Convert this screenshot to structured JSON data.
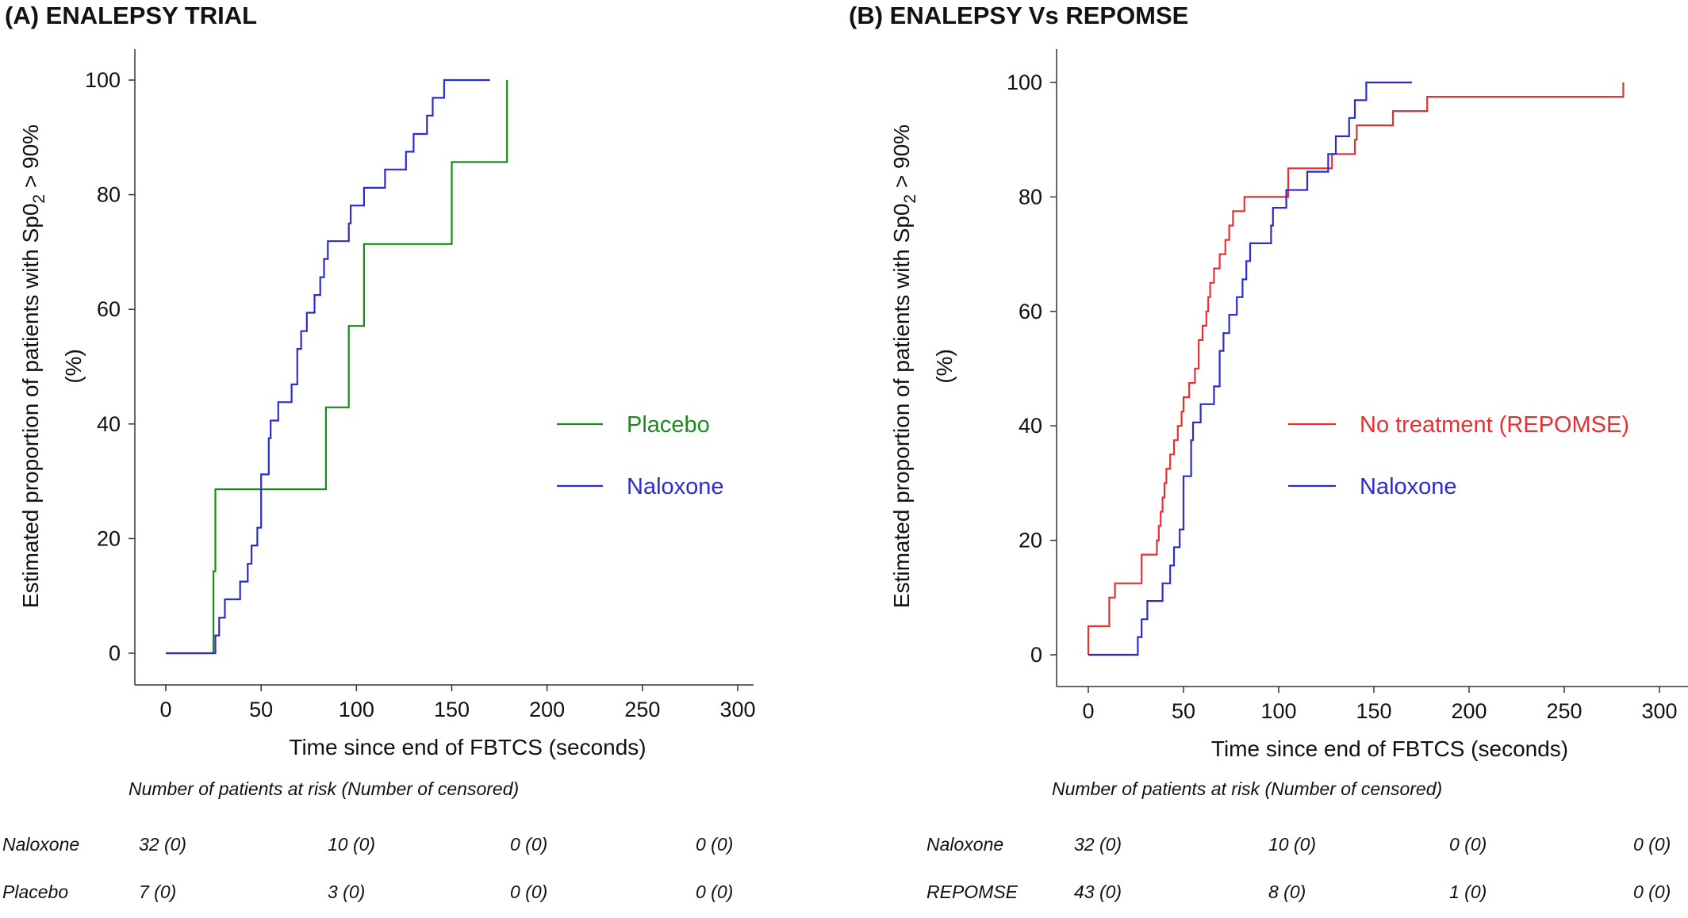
{
  "chart_data": [
    {
      "type": "line",
      "panel_title": "(A)  ENALEPSY TRIAL",
      "xlabel": "Time since end of FBTCS (seconds)",
      "ylabel_main": "Estimated proportion of patients with Sp0",
      "ylabel_sub": "2",
      "ylabel_tail": " > 90%",
      "ylabel_unit": "(%)",
      "xlim": [
        0,
        300
      ],
      "ylim": [
        0,
        100
      ],
      "xticks": [
        "0",
        "50",
        "100",
        "150",
        "200",
        "250",
        "300"
      ],
      "yticks": [
        "0",
        "20",
        "40",
        "60",
        "80",
        "100"
      ],
      "grid": false,
      "legend_position": "right",
      "series": [
        {
          "name": "Placebo",
          "color": "#1a8a1a",
          "x": [
            0,
            25,
            26,
            84,
            96,
            104,
            150,
            179
          ],
          "y": [
            0,
            14.3,
            28.6,
            42.9,
            57.1,
            71.4,
            85.7,
            100
          ]
        },
        {
          "name": "Naloxone",
          "color": "#2b2bd0",
          "x": [
            0,
            26,
            28,
            31,
            39,
            43,
            45,
            48,
            50,
            54,
            55,
            59,
            66,
            69,
            71,
            74,
            78,
            81,
            83,
            85,
            96,
            97,
            104,
            115,
            126,
            130,
            137,
            140,
            146,
            164,
            167,
            170
          ],
          "y": [
            0,
            3.1,
            6.2,
            9.4,
            12.5,
            15.6,
            18.8,
            21.9,
            31.2,
            37.5,
            40.6,
            43.8,
            46.9,
            53.1,
            56.2,
            59.4,
            62.5,
            65.6,
            68.8,
            71.9,
            75.0,
            78.1,
            81.2,
            84.4,
            87.5,
            90.6,
            93.8,
            96.9,
            100,
            100,
            100,
            100
          ]
        }
      ],
      "risk_table": {
        "title": "Number of patients at risk (Number of censored)",
        "rows": [
          {
            "label": "Naloxone",
            "values": [
              "32 (0)",
              "10 (0)",
              "0 (0)",
              "0 (0)"
            ]
          },
          {
            "label": "Placebo",
            "values": [
              "7 (0)",
              "3 (0)",
              "0 (0)",
              "0 (0)"
            ]
          }
        ]
      }
    },
    {
      "type": "line",
      "panel_title": "(B)  ENALEPSY Vs REPOMSE",
      "xlabel": "Time since end of FBTCS (seconds)",
      "ylabel_main": "Estimated proportion of patients with Sp0",
      "ylabel_sub": "2",
      "ylabel_tail": " > 90%",
      "ylabel_unit": "(%)",
      "xlim": [
        0,
        300
      ],
      "ylim": [
        0,
        100
      ],
      "xticks": [
        "0",
        "50",
        "100",
        "150",
        "200",
        "250",
        "300"
      ],
      "yticks": [
        "0",
        "20",
        "40",
        "60",
        "80",
        "100"
      ],
      "grid": false,
      "legend_position": "right",
      "series": [
        {
          "name": "No treatment (REPOMSE)",
          "color": "#e83030",
          "x": [
            0,
            11,
            14,
            28,
            36,
            37,
            38,
            39,
            40,
            41,
            43,
            45,
            47,
            49,
            50,
            53,
            56,
            58,
            60,
            62,
            63,
            64,
            66,
            69,
            72,
            74,
            76,
            77,
            79,
            80,
            82,
            88,
            94,
            105,
            128,
            137,
            140,
            141,
            147,
            160,
            178,
            281
          ],
          "y": [
            5,
            10,
            12.5,
            17.5,
            20,
            22.5,
            25,
            27.5,
            30,
            32.5,
            35,
            37.5,
            40,
            42.5,
            45,
            47.5,
            50,
            55,
            57.5,
            60,
            62.5,
            65,
            67.5,
            70,
            72.5,
            75,
            77.5,
            77.5,
            77.5,
            77.5,
            80,
            80,
            80,
            85,
            87.5,
            87.5,
            90,
            92.5,
            92.5,
            95,
            97.5,
            100
          ]
        },
        {
          "name": "Naloxone",
          "color": "#2b2bd0",
          "x": [
            0,
            26,
            28,
            31,
            39,
            43,
            45,
            48,
            50,
            54,
            55,
            59,
            66,
            69,
            71,
            74,
            78,
            81,
            83,
            85,
            96,
            97,
            104,
            115,
            126,
            130,
            137,
            140,
            146,
            164,
            167,
            170
          ],
          "y": [
            0,
            3.1,
            6.2,
            9.4,
            12.5,
            15.6,
            18.8,
            21.9,
            31.2,
            37.5,
            40.6,
            43.8,
            46.9,
            53.1,
            56.2,
            59.4,
            62.5,
            65.6,
            68.8,
            71.9,
            75.0,
            78.1,
            81.2,
            84.4,
            87.5,
            90.6,
            93.8,
            96.9,
            100,
            100,
            100,
            100
          ]
        }
      ],
      "risk_table": {
        "title": "Number of patients at risk (Number of censored)",
        "rows": [
          {
            "label": "Naloxone",
            "values": [
              "32 (0)",
              "10 (0)",
              "0 (0)",
              "0 (0)"
            ]
          },
          {
            "label": "REPOMSE",
            "values": [
              "43 (0)",
              "8 (0)",
              "1 (0)",
              "0 (0)"
            ]
          }
        ]
      }
    }
  ]
}
